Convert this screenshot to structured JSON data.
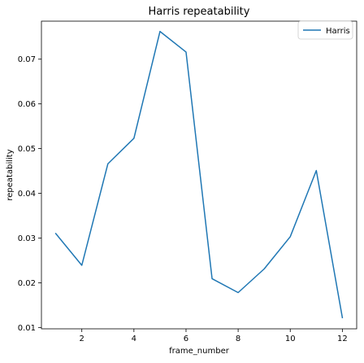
{
  "chart_data": {
    "type": "line",
    "title": "Harris repeatability",
    "xlabel": "frame_number",
    "ylabel": "repeatability",
    "xlim": [
      0.45,
      12.55
    ],
    "ylim": [
      0.0097,
      0.0785
    ],
    "xticks": [
      2,
      4,
      6,
      8,
      10,
      12
    ],
    "xtick_labels": [
      "2",
      "4",
      "6",
      "8",
      "10",
      "12"
    ],
    "yticks": [
      0.01,
      0.02,
      0.03,
      0.04,
      0.05,
      0.06,
      0.07
    ],
    "ytick_labels": [
      "0.01",
      "0.02",
      "0.03",
      "0.04",
      "0.05",
      "0.06",
      "0.07"
    ],
    "grid": false,
    "legend_position": "top-right",
    "series": [
      {
        "name": "Harris",
        "color": "#1f77b4",
        "x": [
          1,
          2,
          3,
          4,
          5,
          6,
          7,
          8,
          9,
          10,
          11,
          12
        ],
        "y": [
          0.031,
          0.0239,
          0.0466,
          0.0523,
          0.0762,
          0.0716,
          0.0209,
          0.0178,
          0.0231,
          0.0303,
          0.0451,
          0.0122
        ]
      }
    ]
  }
}
